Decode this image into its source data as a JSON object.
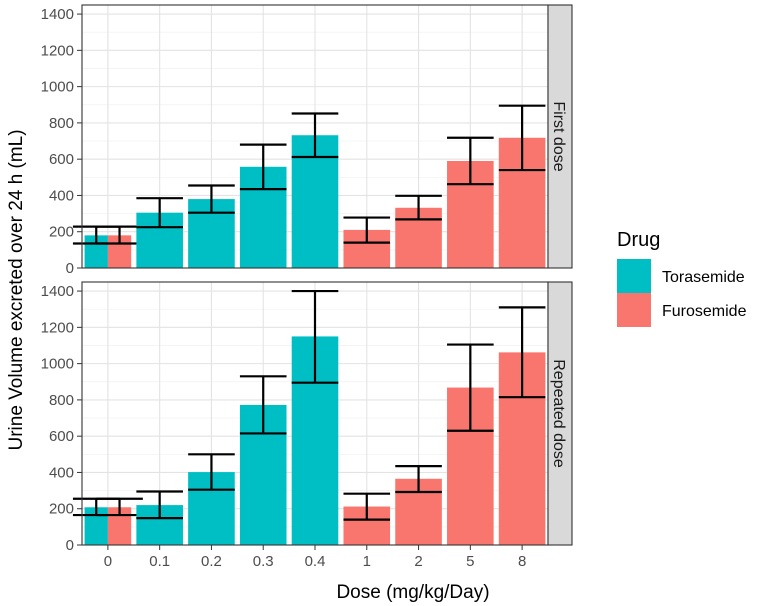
{
  "chart_data": {
    "type": "bar",
    "ylabel": "Urine Volume excreted over 24 h (mL)",
    "xlabel": "Dose (mg/kg/Day)",
    "categories": [
      "0",
      "0.1",
      "0.2",
      "0.3",
      "0.4",
      "1",
      "2",
      "5",
      "8"
    ],
    "ylim": [
      0,
      1450
    ],
    "yticks": [
      0,
      200,
      400,
      600,
      800,
      1000,
      1200,
      1400
    ],
    "grid": true,
    "legend": {
      "title": "Drug",
      "position": "right",
      "entries": [
        {
          "name": "Torasemide",
          "color": "#00BFC4"
        },
        {
          "name": "Furosemide",
          "color": "#F8766D"
        }
      ]
    },
    "panels": [
      {
        "label": "First dose",
        "bars": [
          {
            "category": "0",
            "drug": "Torasemide",
            "value": 180,
            "err_low": 135,
            "err_high": 228,
            "slot": "left"
          },
          {
            "category": "0",
            "drug": "Furosemide",
            "value": 180,
            "err_low": 135,
            "err_high": 228,
            "slot": "right"
          },
          {
            "category": "0.1",
            "drug": "Torasemide",
            "value": 305,
            "err_low": 225,
            "err_high": 385,
            "slot": "full"
          },
          {
            "category": "0.2",
            "drug": "Torasemide",
            "value": 380,
            "err_low": 305,
            "err_high": 455,
            "slot": "full"
          },
          {
            "category": "0.3",
            "drug": "Torasemide",
            "value": 558,
            "err_low": 435,
            "err_high": 680,
            "slot": "full"
          },
          {
            "category": "0.4",
            "drug": "Torasemide",
            "value": 732,
            "err_low": 612,
            "err_high": 852,
            "slot": "full"
          },
          {
            "category": "1",
            "drug": "Furosemide",
            "value": 210,
            "err_low": 140,
            "err_high": 278,
            "slot": "full"
          },
          {
            "category": "2",
            "drug": "Furosemide",
            "value": 332,
            "err_low": 268,
            "err_high": 398,
            "slot": "full"
          },
          {
            "category": "5",
            "drug": "Furosemide",
            "value": 590,
            "err_low": 462,
            "err_high": 718,
            "slot": "full"
          },
          {
            "category": "8",
            "drug": "Furosemide",
            "value": 718,
            "err_low": 540,
            "err_high": 895,
            "slot": "full"
          }
        ]
      },
      {
        "label": "Repeated dose",
        "bars": [
          {
            "category": "0",
            "drug": "Torasemide",
            "value": 208,
            "err_low": 165,
            "err_high": 255,
            "slot": "left"
          },
          {
            "category": "0",
            "drug": "Furosemide",
            "value": 208,
            "err_low": 165,
            "err_high": 255,
            "slot": "right"
          },
          {
            "category": "0.1",
            "drug": "Torasemide",
            "value": 220,
            "err_low": 148,
            "err_high": 295,
            "slot": "full"
          },
          {
            "category": "0.2",
            "drug": "Torasemide",
            "value": 402,
            "err_low": 305,
            "err_high": 500,
            "slot": "full"
          },
          {
            "category": "0.3",
            "drug": "Torasemide",
            "value": 772,
            "err_low": 615,
            "err_high": 930,
            "slot": "full"
          },
          {
            "category": "0.4",
            "drug": "Torasemide",
            "value": 1150,
            "err_low": 895,
            "err_high": 1400,
            "slot": "full"
          },
          {
            "category": "1",
            "drug": "Furosemide",
            "value": 212,
            "err_low": 140,
            "err_high": 283,
            "slot": "full"
          },
          {
            "category": "2",
            "drug": "Furosemide",
            "value": 365,
            "err_low": 292,
            "err_high": 435,
            "slot": "full"
          },
          {
            "category": "5",
            "drug": "Furosemide",
            "value": 868,
            "err_low": 630,
            "err_high": 1105,
            "slot": "full"
          },
          {
            "category": "8",
            "drug": "Furosemide",
            "value": 1062,
            "err_low": 815,
            "err_high": 1310,
            "slot": "full"
          }
        ]
      }
    ]
  }
}
